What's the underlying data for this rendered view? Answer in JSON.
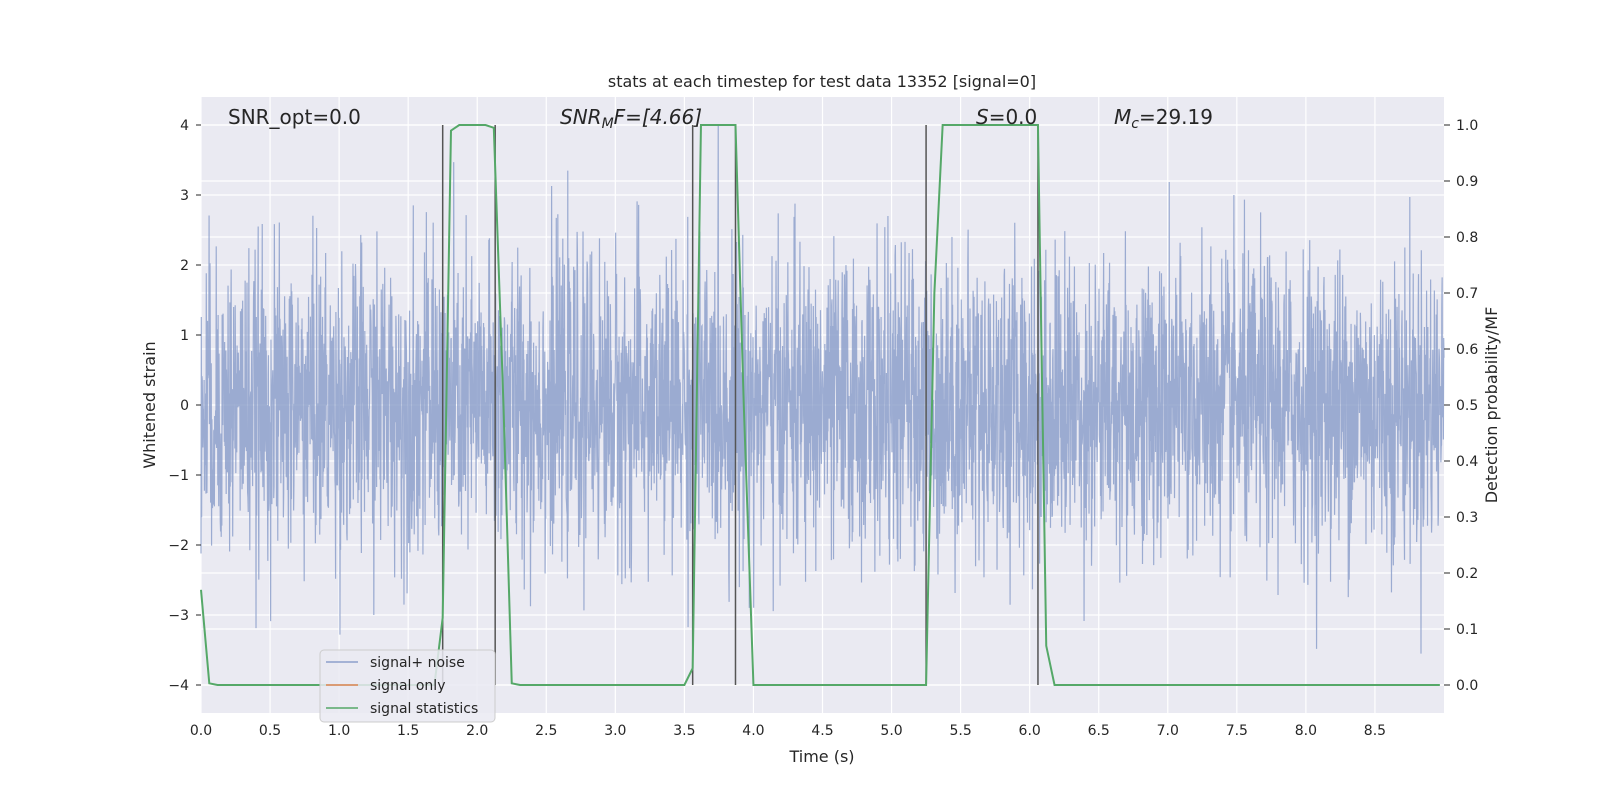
{
  "chart_data": {
    "type": "line",
    "title": "stats at each timestep for test data 13352 [signal=0]",
    "xlabel": "Time (s)",
    "ylabel_left": "Whitened strain",
    "ylabel_right": "Detection probability/MF",
    "xlim": [
      0,
      9.0
    ],
    "ylim_left": [
      -4.4,
      4.4
    ],
    "ylim_right": [
      -0.05,
      1.05
    ],
    "x_ticks": [
      "0.0",
      "0.5",
      "1.0",
      "1.5",
      "2.0",
      "2.5",
      "3.0",
      "3.5",
      "4.0",
      "4.5",
      "5.0",
      "5.5",
      "6.0",
      "6.5",
      "7.0",
      "7.5",
      "8.0",
      "8.5"
    ],
    "y_ticks_left": [
      "4",
      "3",
      "2",
      "1",
      "0",
      "−1",
      "−2",
      "−3",
      "−4"
    ],
    "y_ticks_right": [
      "1.0",
      "0.9",
      "0.8",
      "0.7",
      "0.6",
      "0.5",
      "0.4",
      "0.3",
      "0.2",
      "0.1",
      "0.0"
    ],
    "grid": true,
    "annotations": {
      "snr_opt": "SNR_opt=0.0",
      "snr_mf_main": "SNR",
      "snr_mf_sub": "M",
      "snr_mf_rest": "F=[4.66]",
      "s_main": "S",
      "s_rest": "=0.0",
      "mc_main": "M",
      "mc_sub": "c",
      "mc_rest": "=29.19"
    },
    "legend": {
      "placement": "lower-left",
      "entries": [
        {
          "label": "signal+ noise",
          "color": "#8da0cb"
        },
        {
          "label": "signal only",
          "color": "#dd8452"
        },
        {
          "label": "signal statistics",
          "color": "#55a868"
        }
      ]
    },
    "vertical_markers": [
      1.75,
      2.13,
      3.56,
      3.87,
      5.25,
      6.06
    ],
    "series": [
      {
        "name": "signal statistics",
        "color": "#55a868",
        "axis": "right",
        "x": [
          0.0,
          0.06,
          0.12,
          1.69,
          1.75,
          1.81,
          1.87,
          2.06,
          2.12,
          2.19,
          2.25,
          2.31,
          3.5,
          3.56,
          3.62,
          3.68,
          3.87,
          3.93,
          4.0,
          5.25,
          5.31,
          5.37,
          6.06,
          6.12,
          6.18,
          8.97
        ],
        "y": [
          0.17,
          0.003,
          0.0,
          0.0,
          0.12,
          0.99,
          1.0,
          1.0,
          0.995,
          0.5,
          0.003,
          0.0,
          0.0,
          0.03,
          1.0,
          1.0,
          1.0,
          0.5,
          0.0,
          0.0,
          0.7,
          1.0,
          1.0,
          0.07,
          0.0,
          0.0
        ]
      },
      {
        "name": "signal+ noise",
        "color": "#8da0cb",
        "axis": "left",
        "description_amplitude": "dense whitened-noise trace spanning roughly -4 to 4"
      },
      {
        "name": "signal only",
        "color": "#dd8452",
        "axis": "left"
      }
    ],
    "colors": {
      "plot_bg": "#eaeaf2",
      "grid": "#ffffff",
      "noise": "#8da0cb",
      "signal_only": "#dd8452",
      "statistics": "#55a868",
      "marker": "#555555",
      "text": "#262626"
    }
  }
}
